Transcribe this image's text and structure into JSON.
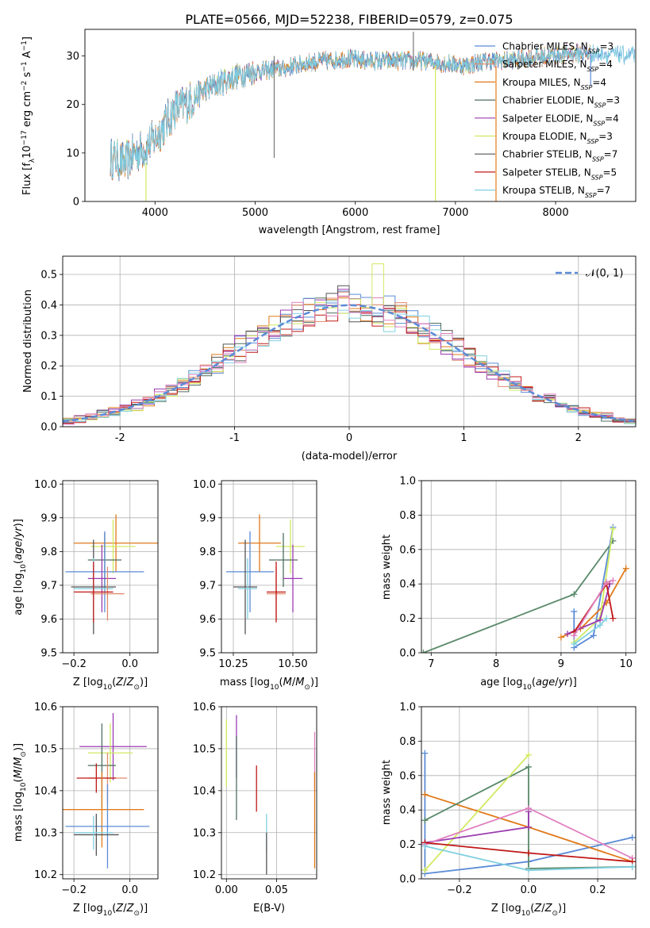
{
  "title": "PLATE=0566, MJD=52238, FIBERID=0579, z=0.075",
  "colors": {
    "Chabrier MILES": "#5b8bd6",
    "Salpeter MILES": "#e08a6a",
    "Kroupa MILES": "#e07a1a",
    "Chabrier ELODIE": "#4f6f5f",
    "Salpeter ELODIE": "#9b3bb0",
    "Kroupa ELODIE": "#d0ea60",
    "Chabrier STELIB": "#555555",
    "Salpeter STELIB": "#c01818",
    "Kroupa STELIB": "#80d0e0",
    "pink": "#e080c0",
    "green": "#5a8a6a",
    "normal": "#5b8bd6",
    "grid": "#b0b0b0"
  },
  "chart_data": [
    {
      "id": "spectrum",
      "type": "line",
      "xlabel": "wavelength [Angstrom, rest frame]",
      "ylabel": "Flux [f_λ10^-17 erg cm^-2 s^-1 A^-1]",
      "xlim": [
        3300,
        8800
      ],
      "ylim": [
        0,
        35.5
      ],
      "xticks": [
        4000,
        5000,
        6000,
        7000,
        8000
      ],
      "yticks": [
        0,
        10,
        20,
        30
      ],
      "legend_position": "top-right",
      "legend": [
        {
          "label": "Chabrier MILES",
          "nssp": "3"
        },
        {
          "label": "Salpeter MILES",
          "nssp": "4"
        },
        {
          "label": "Kroupa MILES",
          "nssp": "4"
        },
        {
          "label": "Chabrier ELODIE",
          "nssp": "3"
        },
        {
          "label": "Salpeter ELODIE",
          "nssp": "4"
        },
        {
          "label": "Kroupa ELODIE",
          "nssp": "3"
        },
        {
          "label": "Chabrier STELIB",
          "nssp": "7"
        },
        {
          "label": "Salpeter STELIB",
          "nssp": "5"
        },
        {
          "label": "Kroupa STELIB",
          "nssp": "7"
        }
      ],
      "continuum": [
        [
          3550,
          9
        ],
        [
          3700,
          8
        ],
        [
          3800,
          10
        ],
        [
          3900,
          11
        ],
        [
          4000,
          13
        ],
        [
          4100,
          16
        ],
        [
          4200,
          19
        ],
        [
          4300,
          20
        ],
        [
          4500,
          23
        ],
        [
          4700,
          25
        ],
        [
          4900,
          26.5
        ],
        [
          5100,
          27
        ],
        [
          5300,
          27.5
        ],
        [
          5500,
          28.5
        ],
        [
          5700,
          29
        ],
        [
          5900,
          29.5
        ],
        [
          6100,
          29
        ],
        [
          6300,
          29
        ],
        [
          6500,
          29
        ],
        [
          6700,
          29
        ],
        [
          6900,
          28.5
        ],
        [
          7100,
          28
        ],
        [
          7300,
          29
        ],
        [
          7500,
          29
        ],
        [
          7700,
          29.5
        ],
        [
          7900,
          30
        ],
        [
          8150,
          30.5
        ],
        [
          8500,
          30.5
        ],
        [
          8800,
          30
        ]
      ]
    },
    {
      "id": "residuals",
      "type": "line",
      "xlabel": "(data-model)/error",
      "ylabel": "Normed distribution",
      "xlim": [
        -2.5,
        2.5
      ],
      "ylim": [
        0,
        0.56
      ],
      "xticks": [
        -2,
        -1,
        0,
        1,
        2
      ],
      "yticks": [
        0.0,
        0.1,
        0.2,
        0.3,
        0.4,
        0.5
      ],
      "legend_position": "top-right",
      "legend": [
        {
          "label": "𝒩(0, 1)"
        }
      ]
    },
    {
      "id": "age_vs_Z",
      "type": "scatter",
      "xlabel": "Z [log10(Z/Z⊙)]",
      "ylabel": "age  [log10(age/yr)]",
      "xlim": [
        -0.24,
        0.1
      ],
      "ylim": [
        9.5,
        10.01
      ],
      "xticks": [
        -0.2,
        0.0
      ],
      "yticks": [
        9.5,
        9.6,
        9.7,
        9.8,
        9.9,
        10.0
      ],
      "points": [
        {
          "name": "Kroupa MILES",
          "x": -0.05,
          "xerr": 0.15,
          "y": 9.825,
          "yerr": 0.085
        },
        {
          "name": "Kroupa ELODIE",
          "x": -0.06,
          "xerr": 0.08,
          "y": 9.815,
          "yerr": 0.08
        },
        {
          "name": "Chabrier ELODIE",
          "x": -0.09,
          "xerr": 0.06,
          "y": 9.775,
          "yerr": 0.08
        },
        {
          "name": "Chabrier MILES",
          "x": -0.09,
          "xerr": 0.14,
          "y": 9.74,
          "yerr": 0.12
        },
        {
          "name": "Salpeter ELODIE",
          "x": -0.1,
          "xerr": 0.05,
          "y": 9.72,
          "yerr": 0.1
        },
        {
          "name": "Chabrier STELIB",
          "x": -0.13,
          "xerr": 0.08,
          "y": 9.695,
          "yerr": 0.14
        },
        {
          "name": "Kroupa STELIB",
          "x": -0.13,
          "xerr": 0.07,
          "y": 9.69,
          "yerr": 0.09
        },
        {
          "name": "Salpeter MILES",
          "x": -0.08,
          "xerr": 0.06,
          "y": 9.675,
          "yerr": 0.08
        },
        {
          "name": "Salpeter STELIB",
          "x": -0.13,
          "xerr": 0.07,
          "y": 9.68,
          "yerr": 0.09
        }
      ]
    },
    {
      "id": "age_vs_mass",
      "type": "scatter",
      "xlabel": "mass [log10(M/M⊙)]",
      "ylabel": "",
      "xlim": [
        10.2,
        10.6
      ],
      "ylim": [
        9.5,
        10.01
      ],
      "xticks": [
        10.25,
        10.5
      ],
      "xticklabels": [
        "10.25",
        "10.50"
      ],
      "yticks": [
        9.5,
        9.6,
        9.7,
        9.8,
        9.9,
        10.0
      ],
      "points": [
        {
          "name": "Kroupa MILES",
          "x": 10.36,
          "xerr": 0.09,
          "y": 9.825,
          "yerr": 0.085
        },
        {
          "name": "Kroupa ELODIE",
          "x": 10.49,
          "xerr": 0.06,
          "y": 9.815,
          "yerr": 0.08
        },
        {
          "name": "Chabrier ELODIE",
          "x": 10.46,
          "xerr": 0.06,
          "y": 9.775,
          "yerr": 0.08
        },
        {
          "name": "Chabrier MILES",
          "x": 10.32,
          "xerr": 0.1,
          "y": 9.74,
          "yerr": 0.12
        },
        {
          "name": "Salpeter ELODIE",
          "x": 10.5,
          "xerr": 0.04,
          "y": 9.72,
          "yerr": 0.1
        },
        {
          "name": "Chabrier STELIB",
          "x": 10.3,
          "xerr": 0.05,
          "y": 9.695,
          "yerr": 0.14
        },
        {
          "name": "Kroupa STELIB",
          "x": 10.31,
          "xerr": 0.04,
          "y": 9.69,
          "yerr": 0.09
        },
        {
          "name": "Salpeter MILES",
          "x": 10.43,
          "xerr": 0.04,
          "y": 9.675,
          "yerr": 0.08
        },
        {
          "name": "Salpeter STELIB",
          "x": 10.43,
          "xerr": 0.04,
          "y": 9.68,
          "yerr": 0.09
        }
      ]
    },
    {
      "id": "weight_vs_age",
      "type": "line",
      "xlabel": "age  [log10(age/yr)]",
      "ylabel": "mass weight",
      "xlim": [
        6.85,
        10.15
      ],
      "ylim": [
        0,
        1.0
      ],
      "xticks": [
        7,
        8,
        9,
        10
      ],
      "yticks": [
        0.0,
        0.2,
        0.4,
        0.6,
        0.8,
        1.0
      ],
      "series": [
        {
          "key": "green",
          "points": [
            [
              6.88,
              0.0
            ],
            [
              9.2,
              0.34
            ],
            [
              9.8,
              0.65
            ]
          ]
        },
        {
          "key": "Chabrier MILES",
          "points": [
            [
              9.2,
              0.24
            ],
            [
              9.2,
              0.03
            ],
            [
              9.5,
              0.1
            ],
            [
              9.8,
              0.73
            ]
          ]
        },
        {
          "key": "Kroupa MILES",
          "points": [
            [
              9.0,
              0.09
            ],
            [
              9.3,
              0.14
            ],
            [
              9.7,
              0.29
            ],
            [
              10.0,
              0.49
            ]
          ]
        },
        {
          "key": "Kroupa ELODIE",
          "points": [
            [
              9.2,
              0.06
            ],
            [
              9.6,
              0.2
            ],
            [
              9.8,
              0.72
            ]
          ]
        },
        {
          "key": "Salpeter ELODIE",
          "points": [
            [
              9.1,
              0.11
            ],
            [
              9.6,
              0.19
            ],
            [
              9.75,
              0.4
            ]
          ]
        },
        {
          "key": "Salpeter STELIB",
          "points": [
            [
              9.2,
              0.12
            ],
            [
              9.7,
              0.4
            ],
            [
              9.8,
              0.2
            ]
          ]
        },
        {
          "key": "pink",
          "points": [
            [
              9.2,
              0.1
            ],
            [
              9.7,
              0.41
            ],
            [
              9.8,
              0.42
            ]
          ]
        },
        {
          "key": "Kroupa STELIB",
          "points": [
            [
              9.2,
              0.05
            ],
            [
              9.6,
              0.16
            ],
            [
              9.7,
              0.2
            ]
          ]
        }
      ]
    },
    {
      "id": "mass_vs_Z",
      "type": "scatter",
      "xlabel": "Z [log10(Z/Z⊙)]",
      "ylabel": "mass [log10(M/M⊙)]",
      "xlim": [
        -0.24,
        0.1
      ],
      "ylim": [
        10.19,
        10.6
      ],
      "xticks": [
        -0.2,
        0.0
      ],
      "yticks": [
        10.2,
        10.3,
        10.4,
        10.5,
        10.6
      ],
      "points": [
        {
          "name": "Salpeter ELODIE",
          "x": -0.06,
          "xerr": 0.12,
          "y": 10.505,
          "yerr": 0.08
        },
        {
          "name": "Kroupa ELODIE",
          "x": -0.07,
          "xerr": 0.08,
          "y": 10.49,
          "yerr": 0.07
        },
        {
          "name": "Chabrier ELODIE",
          "x": -0.1,
          "xerr": 0.05,
          "y": 10.46,
          "yerr": 0.1
        },
        {
          "name": "Salpeter MILES",
          "x": -0.08,
          "xerr": 0.07,
          "y": 10.43,
          "yerr": 0.06
        },
        {
          "name": "Salpeter STELIB",
          "x": -0.12,
          "xerr": 0.07,
          "y": 10.43,
          "yerr": 0.035
        },
        {
          "name": "Kroupa MILES",
          "x": -0.1,
          "xerr": 0.15,
          "y": 10.355,
          "yerr": 0.09
        },
        {
          "name": "Chabrier MILES",
          "x": -0.08,
          "xerr": 0.15,
          "y": 10.315,
          "yerr": 0.1
        },
        {
          "name": "Chabrier STELIB",
          "x": -0.12,
          "xerr": 0.08,
          "y": 10.295,
          "yerr": 0.05
        },
        {
          "name": "Kroupa STELIB",
          "x": -0.13,
          "xerr": 0.07,
          "y": 10.3,
          "yerr": 0.04
        }
      ]
    },
    {
      "id": "mass_vs_EBV",
      "type": "scatter",
      "xlabel": "E(B-V)",
      "ylabel": "",
      "xlim": [
        -0.005,
        0.09
      ],
      "ylim": [
        10.19,
        10.6
      ],
      "xticks": [
        0.0,
        0.05
      ],
      "xticklabels": [
        "0.00",
        "0.05"
      ],
      "yticks": [
        10.2,
        10.3,
        10.4,
        10.5,
        10.6
      ],
      "points": [
        {
          "name": "Salpeter ELODIE",
          "x": 0.01,
          "xerr": 0,
          "y": 10.505,
          "yerr": 0.075
        },
        {
          "name": "Kroupa ELODIE",
          "x": 0.0,
          "xerr": 0,
          "y": 10.49,
          "yerr": 0.08
        },
        {
          "name": "Chabrier ELODIE",
          "x": 0.01,
          "xerr": 0,
          "y": 10.43,
          "yerr": 0.1
        },
        {
          "name": "Salpeter STELIB",
          "x": 0.03,
          "xerr": 0,
          "y": 10.405,
          "yerr": 0.055
        },
        {
          "name": "Kroupa STELIB",
          "x": 0.04,
          "xerr": 0,
          "y": 10.3,
          "yerr": 0.045
        },
        {
          "name": "Chabrier STELIB",
          "x": 0.04,
          "xerr": 0,
          "y": 10.25,
          "yerr": 0.05
        },
        {
          "name": "pink",
          "x": 0.088,
          "xerr": 0,
          "y": 10.47,
          "yerr": 0.07
        },
        {
          "name": "Kroupa MILES",
          "x": 0.088,
          "xerr": 0,
          "y": 10.33,
          "yerr": 0.115
        }
      ]
    },
    {
      "id": "weight_vs_Z",
      "type": "line",
      "xlabel": "Z [log10(Z/Z⊙)]",
      "ylabel": "mass weight",
      "xlim": [
        -0.31,
        0.31
      ],
      "ylim": [
        0,
        1.0
      ],
      "xticks": [
        -0.2,
        0.0,
        0.2
      ],
      "yticks": [
        0.0,
        0.2,
        0.4,
        0.6,
        0.8,
        1.0
      ],
      "series": [
        {
          "key": "Chabrier MILES",
          "points": [
            [
              -0.3,
              0.73
            ],
            [
              -0.3,
              0.03
            ],
            [
              0.0,
              0.1
            ],
            [
              0.3,
              0.24
            ]
          ]
        },
        {
          "key": "Kroupa MILES",
          "points": [
            [
              -0.3,
              0.49
            ],
            [
              0.0,
              0.3
            ],
            [
              0.3,
              0.1
            ]
          ]
        },
        {
          "key": "green",
          "points": [
            [
              -0.3,
              0.34
            ],
            [
              0.0,
              0.65
            ],
            [
              0.0,
              0.06
            ],
            [
              0.3,
              0.07
            ]
          ]
        },
        {
          "key": "Kroupa ELODIE",
          "points": [
            [
              -0.3,
              0.05
            ],
            [
              0.0,
              0.72
            ]
          ]
        },
        {
          "key": "Salpeter ELODIE",
          "points": [
            [
              -0.3,
              0.21
            ],
            [
              0.0,
              0.3
            ],
            [
              0.0,
              0.39
            ]
          ]
        },
        {
          "key": "pink",
          "points": [
            [
              -0.3,
              0.2
            ],
            [
              0.0,
              0.41
            ],
            [
              0.3,
              0.12
            ]
          ]
        },
        {
          "key": "Salpeter STELIB",
          "points": [
            [
              -0.3,
              0.21
            ],
            [
              0.0,
              0.15
            ],
            [
              0.3,
              0.1
            ]
          ]
        },
        {
          "key": "Kroupa STELIB",
          "points": [
            [
              -0.3,
              0.19
            ],
            [
              0.0,
              0.05
            ],
            [
              0.3,
              0.07
            ]
          ]
        }
      ]
    }
  ]
}
